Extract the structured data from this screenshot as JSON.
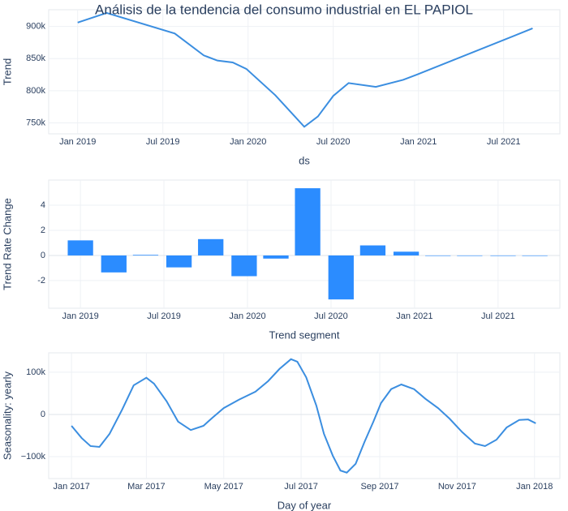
{
  "chart_data": [
    {
      "type": "line",
      "title": "Análisis de la tendencia del consumo industrial en EL PAPIOL",
      "xlabel": "ds",
      "ylabel": "Trend",
      "color": "#3b8ee0",
      "grid": true,
      "x": [
        2019.0,
        2019.17,
        2019.57,
        2019.74,
        2019.82,
        2019.91,
        2019.99,
        2020.16,
        2020.33,
        2020.41,
        2020.5,
        2020.59,
        2020.75,
        2020.91,
        2020.99,
        2021.67
      ],
      "values": [
        906000,
        921000,
        889000,
        855000,
        847000,
        844000,
        834000,
        793000,
        744000,
        760000,
        792000,
        812000,
        806000,
        817000,
        825000,
        897000
      ],
      "xlim": [
        2018.83,
        2021.83
      ],
      "xticks": [
        {
          "value": 2019.0,
          "label": "Jan 2019"
        },
        {
          "value": 2019.5,
          "label": "Jul 2019"
        },
        {
          "value": 2020.0,
          "label": "Jan 2020"
        },
        {
          "value": 2020.5,
          "label": "Jul 2020"
        },
        {
          "value": 2021.0,
          "label": "Jan 2021"
        },
        {
          "value": 2021.5,
          "label": "Jul 2021"
        }
      ],
      "ylim": [
        733000,
        926000
      ],
      "yticks": [
        {
          "value": 750000,
          "label": "750k"
        },
        {
          "value": 800000,
          "label": "800k"
        },
        {
          "value": 850000,
          "label": "850k"
        },
        {
          "value": 900000,
          "label": "900k"
        }
      ]
    },
    {
      "type": "bar",
      "xlabel": "Trend segment",
      "ylabel": "Trend Rate Change",
      "color": "#2b8cff",
      "grid": true,
      "x": [
        2019.0,
        2019.2,
        2019.39,
        2019.59,
        2019.78,
        2019.98,
        2020.17,
        2020.36,
        2020.56,
        2020.75,
        2020.95,
        2021.14,
        2021.33,
        2021.53,
        2021.72
      ],
      "values": [
        1.2,
        -1.35,
        0.05,
        -0.95,
        1.3,
        -1.65,
        -0.25,
        5.35,
        -3.5,
        0.8,
        0.3,
        0,
        0,
        0,
        0
      ],
      "xlim": [
        2018.81,
        2021.87
      ],
      "xticks": [
        {
          "value": 2019.0,
          "label": "Jan 2019"
        },
        {
          "value": 2019.5,
          "label": "Jul 2019"
        },
        {
          "value": 2020.0,
          "label": "Jan 2020"
        },
        {
          "value": 2020.5,
          "label": "Jul 2020"
        },
        {
          "value": 2021.0,
          "label": "Jan 2021"
        },
        {
          "value": 2021.5,
          "label": "Jul 2021"
        }
      ],
      "ylim": [
        -4.2,
        6
      ],
      "yticks": [
        -2,
        0,
        2,
        4
      ]
    },
    {
      "type": "line",
      "xlabel": "Day of year",
      "ylabel": "Seasonality: yearly",
      "color": "#3b8ee0",
      "grid": true,
      "x": [
        0,
        8,
        15,
        22,
        30,
        40,
        49,
        59,
        65,
        75,
        84,
        94,
        104,
        111,
        120,
        132,
        145,
        155,
        164,
        173,
        178,
        185,
        193,
        199,
        206,
        212,
        217,
        224,
        231,
        238,
        244,
        252,
        260,
        270,
        279,
        289,
        298,
        308,
        318,
        326,
        335,
        343,
        353,
        360,
        366
      ],
      "values": [
        -27000,
        -56000,
        -75000,
        -77000,
        -46000,
        12000,
        69000,
        87000,
        73000,
        31000,
        -17000,
        -37000,
        -27000,
        -8000,
        15000,
        35000,
        54000,
        79000,
        108000,
        131000,
        125000,
        88000,
        21000,
        -46000,
        -98000,
        -133000,
        -138000,
        -117000,
        -65000,
        -17000,
        27000,
        60000,
        71000,
        60000,
        37000,
        15000,
        -10000,
        -42000,
        -69000,
        -75000,
        -60000,
        -31000,
        -13000,
        -12000,
        -21000
      ],
      "xlim": [
        -18,
        385
      ],
      "xticks": [
        {
          "value": 0,
          "label": "Jan 2017"
        },
        {
          "value": 59,
          "label": "Mar 2017"
        },
        {
          "value": 120,
          "label": "May 2017"
        },
        {
          "value": 181,
          "label": "Jul 2017"
        },
        {
          "value": 243,
          "label": "Sep 2017"
        },
        {
          "value": 304,
          "label": "Nov 2017"
        },
        {
          "value": 365,
          "label": "Jan 2018"
        }
      ],
      "ylim": [
        -152000,
        146000
      ],
      "yticks": [
        {
          "value": -100000,
          "label": "−100k"
        },
        0,
        {
          "value": 100000,
          "label": "100k"
        }
      ]
    }
  ]
}
